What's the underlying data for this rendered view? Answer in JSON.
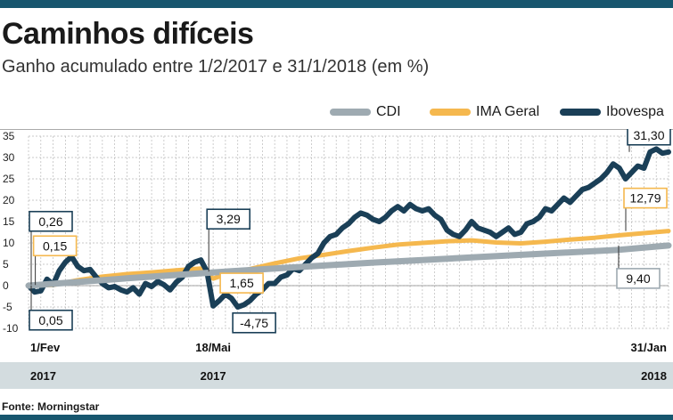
{
  "header": {
    "title": "Caminhos difíceis",
    "subtitle": "Ganho acumulado entre 1/2/2017 e 31/1/2018 (em %)"
  },
  "footer": {
    "source": "Fonte: Morningstar"
  },
  "colors": {
    "cdi": "#9eaab1",
    "ima": "#f5b84e",
    "ibov": "#1a3f57",
    "band": "#d3dcdf",
    "frame": "#17566e"
  },
  "chart_data": {
    "type": "line",
    "title": "Caminhos difíceis",
    "subtitle": "Ganho acumulado entre 1/2/2017 e 31/1/2018 (em %)",
    "xlabel": "",
    "ylabel": "",
    "ylim": [
      -10,
      35
    ],
    "yticks": [
      35,
      30,
      25,
      20,
      15,
      10,
      5,
      0,
      -5,
      -10
    ],
    "grid": true,
    "legend_position": "top-right",
    "date_labels": [
      {
        "day": "1/Fev",
        "year": "2017",
        "t": 0
      },
      {
        "day": "18/Mai",
        "year": "2017",
        "t": 15
      },
      {
        "day": "31/Jan",
        "year": "2018",
        "t": 52
      }
    ],
    "series": [
      {
        "name": "CDI",
        "key": "cdi",
        "points": [
          [
            0,
            0
          ],
          [
            4,
            0.85
          ],
          [
            8,
            1.7
          ],
          [
            12,
            2.5
          ],
          [
            16,
            3.3
          ],
          [
            20,
            4.0
          ],
          [
            24,
            4.7
          ],
          [
            28,
            5.4
          ],
          [
            32,
            6.0
          ],
          [
            36,
            6.6
          ],
          [
            40,
            7.2
          ],
          [
            44,
            7.8
          ],
          [
            48,
            8.4
          ],
          [
            52,
            9.4
          ]
        ]
      },
      {
        "name": "IMA Geral",
        "key": "ima",
        "points": [
          [
            0,
            0
          ],
          [
            2,
            0.15
          ],
          [
            4,
            1.3
          ],
          [
            6,
            2.1
          ],
          [
            8,
            2.7
          ],
          [
            10,
            3.1
          ],
          [
            12,
            3.6
          ],
          [
            14,
            4.0
          ],
          [
            15,
            1.65
          ],
          [
            16,
            2.6
          ],
          [
            18,
            3.9
          ],
          [
            20,
            5.2
          ],
          [
            22,
            6.4
          ],
          [
            24,
            7.2
          ],
          [
            26,
            8.1
          ],
          [
            28,
            8.9
          ],
          [
            30,
            9.6
          ],
          [
            32,
            10.0
          ],
          [
            34,
            10.4
          ],
          [
            36,
            10.6
          ],
          [
            38,
            10.1
          ],
          [
            40,
            9.9
          ],
          [
            42,
            10.3
          ],
          [
            44,
            10.8
          ],
          [
            46,
            11.2
          ],
          [
            48,
            11.8
          ],
          [
            50,
            12.3
          ],
          [
            52,
            12.79
          ]
        ]
      },
      {
        "name": "Ibovespa",
        "key": "ibov",
        "points": [
          [
            0,
            0.05
          ],
          [
            0.5,
            -1.5
          ],
          [
            1,
            -1.2
          ],
          [
            1.5,
            1.5
          ],
          [
            2,
            0.26
          ],
          [
            2.5,
            3.5
          ],
          [
            3,
            5.5
          ],
          [
            3.5,
            6.8
          ],
          [
            4,
            4.5
          ],
          [
            4.5,
            3.5
          ],
          [
            5,
            3.8
          ],
          [
            5.5,
            2.0
          ],
          [
            6,
            0.5
          ],
          [
            6.5,
            -0.5
          ],
          [
            7,
            -0.2
          ],
          [
            7.5,
            -1.0
          ],
          [
            8,
            -1.5
          ],
          [
            8.5,
            -0.5
          ],
          [
            9,
            -2.0
          ],
          [
            9.5,
            0.5
          ],
          [
            10,
            -0.2
          ],
          [
            10.5,
            1.0
          ],
          [
            11,
            0.2
          ],
          [
            11.5,
            -1.0
          ],
          [
            12,
            0.8
          ],
          [
            12.5,
            2.0
          ],
          [
            13,
            4.5
          ],
          [
            13.5,
            5.5
          ],
          [
            14,
            6.0
          ],
          [
            14.5,
            3.29
          ],
          [
            15,
            -4.75
          ],
          [
            15.5,
            -3.5
          ],
          [
            16,
            -2.0
          ],
          [
            16.5,
            -3.0
          ],
          [
            17,
            -5.0
          ],
          [
            17.5,
            -4.5
          ],
          [
            18,
            -3.5
          ],
          [
            18.5,
            -2.0
          ],
          [
            19,
            -1.0
          ],
          [
            19.5,
            0.5
          ],
          [
            20,
            0.5
          ],
          [
            20.5,
            2.0
          ],
          [
            21,
            2.5
          ],
          [
            21.5,
            4.0
          ],
          [
            22,
            3.5
          ],
          [
            22.5,
            5.0
          ],
          [
            23,
            6.5
          ],
          [
            23.5,
            7.5
          ],
          [
            24,
            10.0
          ],
          [
            24.5,
            11.5
          ],
          [
            25,
            12.0
          ],
          [
            25.5,
            13.5
          ],
          [
            26,
            14.5
          ],
          [
            26.5,
            16.0
          ],
          [
            27,
            17.0
          ],
          [
            27.5,
            16.5
          ],
          [
            28,
            15.5
          ],
          [
            28.5,
            15.0
          ],
          [
            29,
            16.0
          ],
          [
            29.5,
            17.5
          ],
          [
            30,
            18.5
          ],
          [
            30.5,
            17.5
          ],
          [
            31,
            19.0
          ],
          [
            31.5,
            18.0
          ],
          [
            32,
            17.5
          ],
          [
            32.5,
            18.0
          ],
          [
            33,
            16.5
          ],
          [
            33.5,
            15.5
          ],
          [
            34,
            13.0
          ],
          [
            34.5,
            12.0
          ],
          [
            35,
            11.5
          ],
          [
            35.5,
            13.0
          ],
          [
            36,
            15.0
          ],
          [
            36.5,
            13.5
          ],
          [
            37,
            13.0
          ],
          [
            37.5,
            12.5
          ],
          [
            38,
            11.5
          ],
          [
            38.5,
            12.5
          ],
          [
            39,
            13.5
          ],
          [
            39.5,
            12.0
          ],
          [
            40,
            12.5
          ],
          [
            40.5,
            14.5
          ],
          [
            41,
            15.0
          ],
          [
            41.5,
            16.0
          ],
          [
            42,
            18.0
          ],
          [
            42.5,
            17.5
          ],
          [
            43,
            19.0
          ],
          [
            43.5,
            20.5
          ],
          [
            44,
            19.5
          ],
          [
            44.5,
            21.0
          ],
          [
            45,
            22.5
          ],
          [
            45.5,
            23.0
          ],
          [
            46,
            24.0
          ],
          [
            46.5,
            25.0
          ],
          [
            47,
            26.5
          ],
          [
            47.5,
            28.5
          ],
          [
            48,
            27.5
          ],
          [
            48.5,
            25.0
          ],
          [
            49,
            26.5
          ],
          [
            49.5,
            28.0
          ],
          [
            50,
            27.5
          ],
          [
            50.5,
            31.3
          ],
          [
            51,
            32.0
          ],
          [
            51.5,
            31.0
          ],
          [
            52,
            31.3
          ]
        ]
      }
    ],
    "annotations": [
      {
        "text": "0,26",
        "series": "ibov",
        "t": 2
      },
      {
        "text": "0,15",
        "series": "ima",
        "t": 2
      },
      {
        "text": "0,05",
        "series": "ibov",
        "t": 0
      },
      {
        "text": "3,29",
        "series": "ibov",
        "t": 14.5
      },
      {
        "text": "1,65",
        "series": "ima",
        "t": 15
      },
      {
        "text": "-4,75",
        "series": "ibov",
        "t": 15
      },
      {
        "text": "31,30",
        "series": "ibov",
        "t": 52
      },
      {
        "text": "12,79",
        "series": "ima",
        "t": 52
      },
      {
        "text": "9,40",
        "series": "cdi",
        "t": 52
      }
    ]
  }
}
